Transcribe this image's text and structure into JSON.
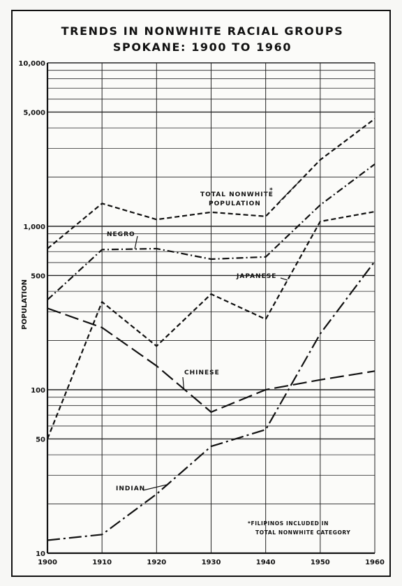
{
  "chart_data": {
    "type": "line",
    "title": [
      "TRENDS IN NONWHITE RACIAL GROUPS",
      "SPOKANE:  1900 TO 1960"
    ],
    "ylabel": "POPULATION",
    "xlabel": "",
    "yscale": "log",
    "ylim": [
      10,
      10000
    ],
    "x": [
      1900,
      1910,
      1920,
      1930,
      1940,
      1950,
      1960
    ],
    "x_tick_labels": [
      "1900",
      "1910",
      "1920",
      "1930",
      "1940",
      "1950",
      "1960"
    ],
    "y_tick_values": [
      10,
      50,
      100,
      500,
      1000,
      5000,
      10000
    ],
    "y_tick_labels": [
      "10",
      "50",
      "100",
      "500",
      "1,000",
      "5,000",
      "10,000"
    ],
    "grid": true,
    "series": [
      {
        "name": "TOTAL NONWHITE POPULATION",
        "label": [
          "TOTAL NONWHITE",
          "POPULATION"
        ],
        "asterisk": "*",
        "style": "dashed",
        "values": [
          730,
          1380,
          1100,
          1220,
          1150,
          2550,
          4550
        ]
      },
      {
        "name": "NEGRO",
        "label": [
          "NEGRO"
        ],
        "style": "dash-dot",
        "values": [
          355,
          720,
          730,
          630,
          650,
          1350,
          2400
        ]
      },
      {
        "name": "JAPANESE",
        "label": [
          "JAPANESE"
        ],
        "style": "dashed",
        "values": [
          50,
          345,
          185,
          385,
          270,
          1070,
          1230
        ]
      },
      {
        "name": "CHINESE",
        "label": [
          "CHINESE"
        ],
        "style": "long-dash",
        "values": [
          315,
          240,
          140,
          73,
          100,
          115,
          130
        ]
      },
      {
        "name": "INDIAN",
        "label": [
          "INDIAN"
        ],
        "style": "long-dash-dot",
        "values": [
          12,
          13,
          23,
          45,
          57,
          220,
          610
        ]
      }
    ],
    "footnote": [
      "*FILIPINOS INCLUDED IN",
      "TOTAL NONWHITE CATEGORY"
    ]
  }
}
